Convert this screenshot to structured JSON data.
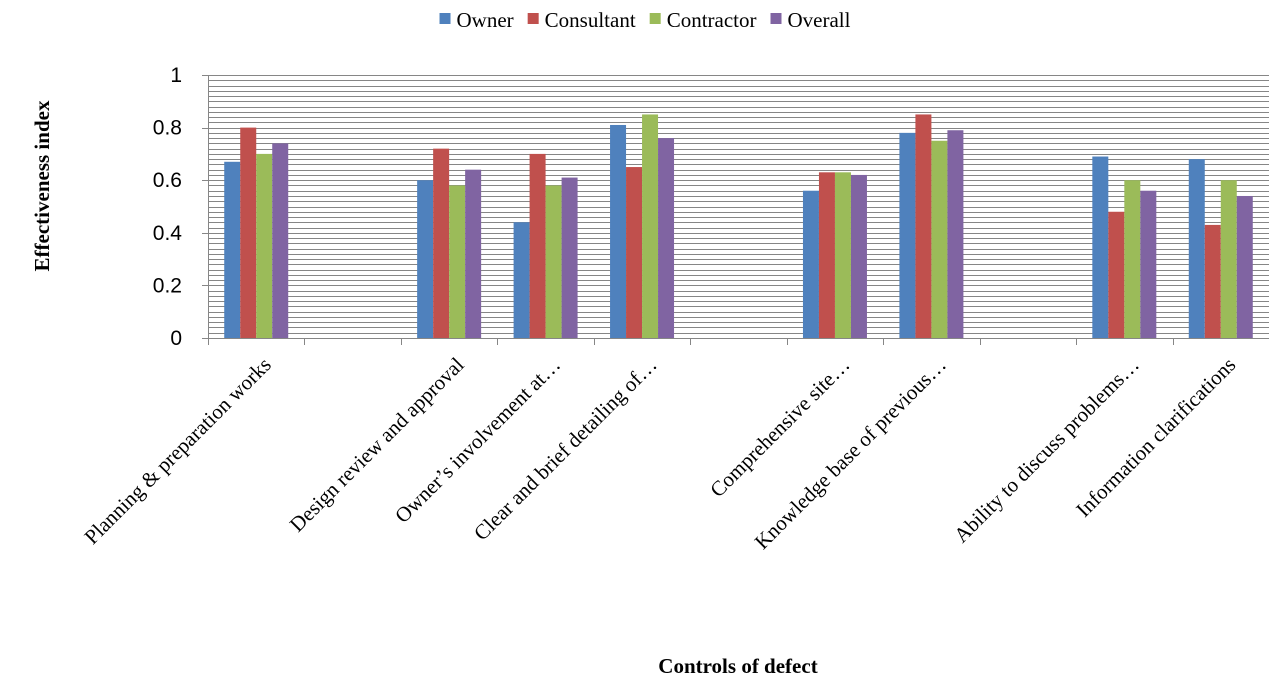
{
  "chart_data": {
    "type": "bar",
    "title": "",
    "xlabel": "Controls of defect",
    "ylabel": "Effectiveness index",
    "ylim": [
      0,
      1
    ],
    "yticks": [
      0,
      0.2,
      0.4,
      0.6,
      0.8,
      1
    ],
    "ytick_labels": [
      "0",
      "0.2",
      "0.4",
      "0.6",
      "0.8",
      "1"
    ],
    "grid": true,
    "legend_position": "top-center",
    "categories": [
      "Planning & preparation works",
      "",
      "Design review and approval",
      "Owner’s involvement at…",
      "Clear and brief detailing of…",
      "",
      "Comprehensive site…",
      "Knowledge base of previous…",
      "",
      "Ability to discuss problems…",
      "Information clarifications"
    ],
    "series": [
      {
        "name": "Owner",
        "color": "#4F81BD",
        "values": [
          0.67,
          null,
          0.6,
          0.44,
          0.81,
          null,
          0.56,
          0.78,
          null,
          0.69,
          0.68
        ]
      },
      {
        "name": "Consultant",
        "color": "#C0504D",
        "values": [
          0.8,
          null,
          0.72,
          0.7,
          0.65,
          null,
          0.63,
          0.85,
          null,
          0.48,
          0.43
        ]
      },
      {
        "name": "Contractor",
        "color": "#9BBB59",
        "values": [
          0.7,
          null,
          0.58,
          0.58,
          0.85,
          null,
          0.63,
          0.75,
          null,
          0.6,
          0.6
        ]
      },
      {
        "name": "Overall",
        "color": "#8064A2",
        "values": [
          0.74,
          null,
          0.64,
          0.61,
          0.76,
          null,
          0.62,
          0.79,
          null,
          0.56,
          0.54
        ]
      }
    ]
  },
  "colors": {
    "axis": "#868686",
    "grid": "#868686"
  }
}
